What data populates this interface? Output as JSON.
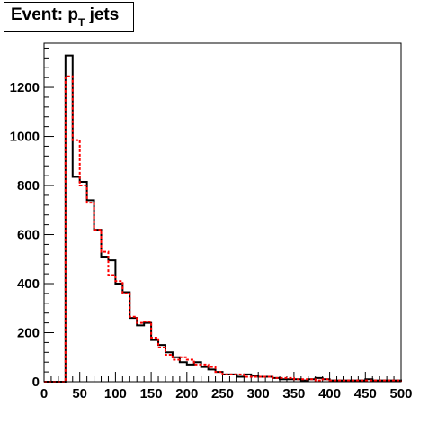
{
  "chart_data": {
    "type": "histogram",
    "title": {
      "prefix": "Event: p",
      "subscript": "T",
      "suffix": " jets"
    },
    "xlabel": "",
    "ylabel": "",
    "xlim": [
      0,
      500
    ],
    "ylim": [
      0,
      1380
    ],
    "bin_width": 10,
    "x_ticks": [
      0,
      50,
      100,
      150,
      200,
      250,
      300,
      350,
      400,
      450,
      500
    ],
    "y_ticks": [
      0,
      200,
      400,
      600,
      800,
      1000,
      1200
    ],
    "grid": false,
    "legend": "none",
    "bin_edges": [
      0,
      10,
      20,
      30,
      40,
      50,
      60,
      70,
      80,
      90,
      100,
      110,
      120,
      130,
      140,
      150,
      160,
      170,
      180,
      190,
      200,
      210,
      220,
      230,
      240,
      250,
      260,
      270,
      280,
      290,
      300,
      310,
      320,
      330,
      340,
      350,
      360,
      370,
      380,
      390,
      400,
      410,
      420,
      430,
      440,
      450,
      460,
      470,
      480,
      490,
      500
    ],
    "series": [
      {
        "color": "#000000",
        "style": "solid",
        "values": [
          0,
          0,
          0,
          1330,
          835,
          815,
          740,
          620,
          510,
          495,
          400,
          365,
          260,
          230,
          240,
          170,
          150,
          120,
          100,
          80,
          70,
          80,
          60,
          50,
          40,
          30,
          30,
          20,
          30,
          25,
          20,
          20,
          15,
          10,
          10,
          10,
          5,
          10,
          15,
          10,
          5,
          5,
          5,
          5,
          5,
          10,
          5,
          5,
          5,
          5
        ]
      },
      {
        "color": "#ff0000",
        "style": "dashed",
        "values": [
          0,
          0,
          0,
          1245,
          985,
          800,
          730,
          620,
          530,
          435,
          410,
          360,
          265,
          240,
          245,
          180,
          140,
          110,
          90,
          100,
          90,
          70,
          70,
          60,
          40,
          30,
          30,
          30,
          20,
          20,
          20,
          20,
          15,
          15,
          15,
          10,
          10,
          10,
          5,
          10,
          5,
          5,
          5,
          5,
          5,
          5,
          5,
          5,
          5,
          5
        ]
      }
    ]
  }
}
